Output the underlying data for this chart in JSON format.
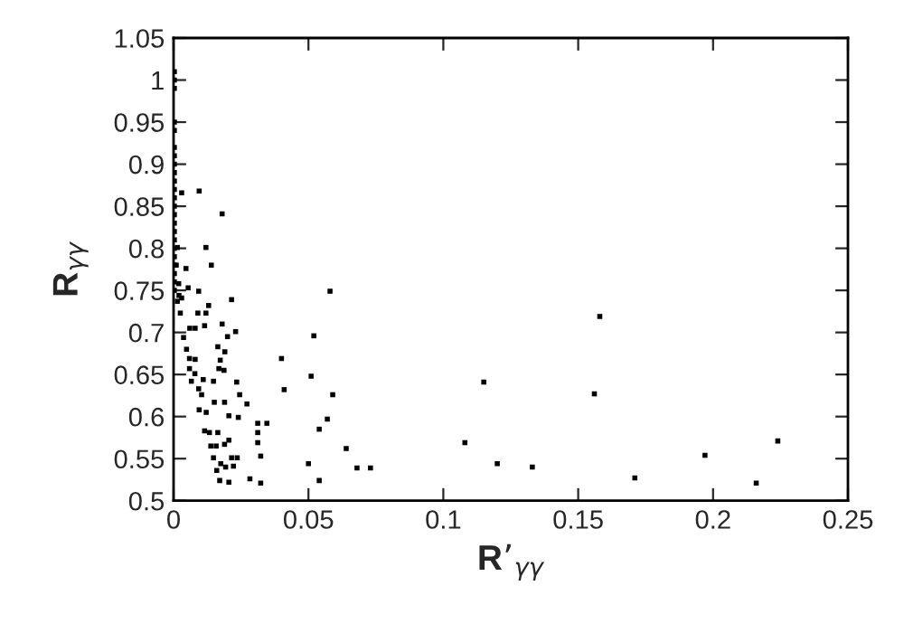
{
  "chart_data": {
    "type": "scatter",
    "xlabel": "R’$_{γγ}$",
    "ylabel": "R$_{γγ}$",
    "xlim": [
      0,
      0.25
    ],
    "xticks": [
      0,
      0.05,
      0.1,
      0.15,
      0.2,
      0.25
    ],
    "ylim": [
      0.5,
      1.05
    ],
    "yticks": [
      0.5,
      0.55,
      0.6,
      0.65,
      0.7,
      0.75,
      0.8,
      0.85,
      0.9,
      0.95,
      1,
      1.05
    ],
    "grid": false,
    "legend": false,
    "marker": "square",
    "series": [
      {
        "color": "#000000",
        "x": [
          0.0003,
          0.0003,
          0.0003,
          0.0003,
          0.0003,
          0.0003,
          0.0003,
          0.0003,
          0.0003,
          0.0003,
          0.0003,
          0.0003,
          0.0003,
          0.0003,
          0.0003,
          0.0003,
          0.0003,
          0.0003,
          0.0003,
          0.0003,
          0.0003,
          0.0003,
          0.0003,
          0.0014,
          0.001,
          0.0019,
          0.002,
          0.0014,
          0.0095,
          0.003,
          0.018,
          0.012,
          0.014,
          0.0046,
          0.0093,
          0.0054,
          0.0215,
          0.013,
          0.003,
          0.0025,
          0.009,
          0.012,
          0.018,
          0.023,
          0.02,
          0.006,
          0.008,
          0.0115,
          0.0037,
          0.0048,
          0.0164,
          0.019,
          0.0059,
          0.008,
          0.0173,
          0.0168,
          0.0187,
          0.0059,
          0.0079,
          0.011,
          0.0148,
          0.0234,
          0.0066,
          0.0093,
          0.0104,
          0.0245,
          0.0151,
          0.0189,
          0.0272,
          0.0095,
          0.0121,
          0.0205,
          0.024,
          0.0312,
          0.0346,
          0.0115,
          0.0133,
          0.0164,
          0.0205,
          0.0312,
          0.0138,
          0.0158,
          0.0189,
          0.0312,
          0.0148,
          0.0175,
          0.0215,
          0.0236,
          0.0323,
          0.016,
          0.0193,
          0.0222,
          0.0171,
          0.0205,
          0.0283,
          0.0323,
          0.058,
          0.052,
          0.04,
          0.051,
          0.041,
          0.059,
          0.057,
          0.054,
          0.064,
          0.05,
          0.068,
          0.073,
          0.054,
          0.108,
          0.115,
          0.12,
          0.133,
          0.158,
          0.156,
          0.171,
          0.197,
          0.216,
          0.224
        ],
        "values": [
          1.01,
          1.0,
          0.99,
          0.95,
          0.94,
          0.92,
          0.91,
          0.9,
          0.89,
          0.88,
          0.87,
          0.86,
          0.85,
          0.84,
          0.83,
          0.82,
          0.81,
          0.8,
          0.79,
          0.78,
          0.77,
          0.76,
          0.75,
          0.801,
          0.78,
          0.758,
          0.744,
          0.737,
          0.868,
          0.866,
          0.841,
          0.801,
          0.78,
          0.776,
          0.749,
          0.753,
          0.739,
          0.732,
          0.741,
          0.723,
          0.723,
          0.723,
          0.71,
          0.701,
          0.695,
          0.705,
          0.705,
          0.708,
          0.694,
          0.68,
          0.683,
          0.677,
          0.669,
          0.668,
          0.667,
          0.657,
          0.655,
          0.657,
          0.651,
          0.644,
          0.642,
          0.641,
          0.642,
          0.633,
          0.626,
          0.626,
          0.617,
          0.617,
          0.615,
          0.608,
          0.605,
          0.601,
          0.599,
          0.592,
          0.592,
          0.583,
          0.581,
          0.581,
          0.572,
          0.581,
          0.565,
          0.565,
          0.567,
          0.569,
          0.551,
          0.544,
          0.551,
          0.551,
          0.553,
          0.536,
          0.54,
          0.541,
          0.524,
          0.522,
          0.526,
          0.521,
          0.749,
          0.696,
          0.669,
          0.648,
          0.632,
          0.626,
          0.597,
          0.585,
          0.562,
          0.544,
          0.539,
          0.539,
          0.524,
          0.569,
          0.641,
          0.544,
          0.54,
          0.719,
          0.627,
          0.527,
          0.554,
          0.521,
          0.571
        ]
      }
    ]
  }
}
